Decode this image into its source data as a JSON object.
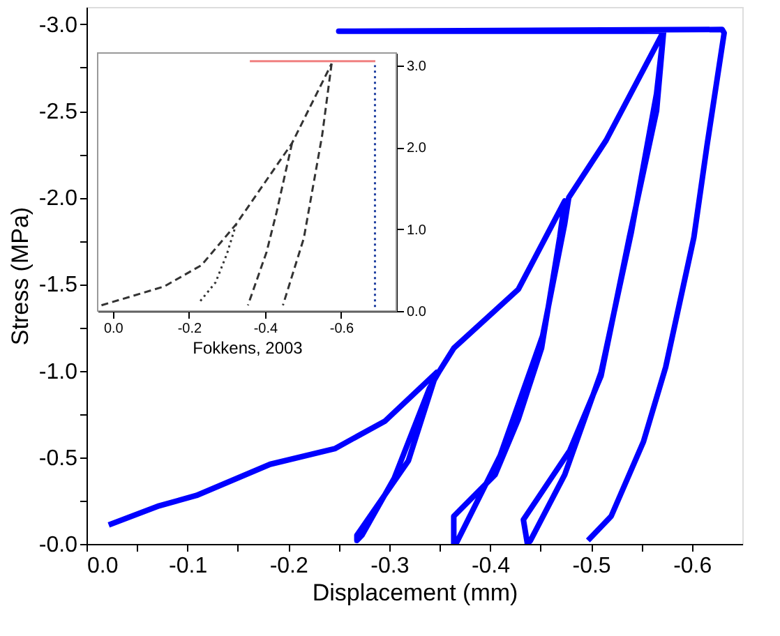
{
  "chart_data": [
    {
      "type": "line",
      "xlabel": "Displacement (mm)",
      "ylabel": "Stress (MPa)",
      "xlim": [
        0,
        -0.65
      ],
      "ylim": [
        0,
        -3.1
      ],
      "xticks": [
        {
          "value": 0,
          "label": "0.0"
        },
        -0.1,
        -0.2,
        -0.3,
        -0.4,
        -0.5,
        -0.6,
        {
          "value": -0.05,
          "label": null
        },
        {
          "value": -0.15,
          "label": null
        },
        {
          "value": -0.25,
          "label": null
        },
        {
          "value": -0.35,
          "label": null
        },
        {
          "value": -0.45,
          "label": null
        },
        {
          "value": -0.55,
          "label": null
        }
      ],
      "yticks": [
        {
          "value": 0,
          "label": "-0.0"
        },
        -0.5,
        {
          "value": -1,
          "label": "-1.0"
        },
        -1.5,
        {
          "value": -2,
          "label": "-2.0"
        },
        -2.5,
        {
          "value": -3,
          "label": "-3.0"
        },
        {
          "value": -0.25,
          "label": null
        },
        {
          "value": -0.75,
          "label": null
        },
        {
          "value": -1.25,
          "label": null
        },
        {
          "value": -1.75,
          "label": null
        },
        {
          "value": -2.25,
          "label": null
        },
        {
          "value": -2.75,
          "label": null
        }
      ],
      "series": [
        {
          "color": "#0000ff",
          "line_style": "solid",
          "x": [
            -0.022,
            -0.072,
            -0.109,
            -0.182,
            -0.246,
            -0.296,
            -0.347,
            -0.319,
            -0.268,
            -0.268,
            -0.273,
            -0.305,
            -0.34,
            -0.35,
            -0.364,
            -0.428,
            -0.474,
            -0.469,
            -0.451,
            -0.428,
            -0.405,
            -0.364,
            -0.364,
            -0.367,
            -0.41,
            -0.452,
            -0.474,
            -0.478,
            -0.515,
            -0.572,
            -0.565,
            -0.538,
            -0.51,
            -0.479,
            -0.433,
            -0.437,
            -0.44,
            -0.474,
            -0.51,
            -0.54,
            -0.565,
            -0.572,
            -0.25,
            -0.63,
            -0.632,
            -0.615,
            -0.602,
            -0.574,
            -0.552,
            -0.52,
            -0.497
          ],
          "values": [
            -0.11,
            -0.22,
            -0.28,
            -0.46,
            -0.55,
            -0.71,
            -0.99,
            -0.48,
            -0.05,
            -0.02,
            -0.05,
            -0.38,
            -0.9,
            -1.0,
            -1.13,
            -1.47,
            -1.98,
            -1.77,
            -1.13,
            -0.72,
            -0.4,
            -0.16,
            0,
            -0.01,
            -0.51,
            -1.2,
            -1.85,
            -2.0,
            -2.33,
            -2.96,
            -2.5,
            -1.77,
            -0.97,
            -0.54,
            -0.14,
            0,
            -0.02,
            -0.4,
            -0.99,
            -1.8,
            -2.6,
            -2.96,
            -2.96,
            -2.97,
            -2.95,
            -2.3,
            -1.77,
            -1.02,
            -0.59,
            -0.16,
            -0.02
          ]
        }
      ]
    },
    {
      "type": "line",
      "xlabel": "Fokkens, 2003",
      "xlim": [
        0.04,
        -0.745
      ],
      "ylim": [
        0,
        3.15
      ],
      "xticks": [
        {
          "value": 0,
          "label": "0.0"
        },
        -0.2,
        -0.4,
        -0.6
      ],
      "yticks": [
        {
          "value": 0,
          "label": "0.0"
        },
        {
          "value": 1,
          "label": "1.0"
        },
        {
          "value": 2,
          "label": "2.0"
        },
        {
          "value": 3,
          "label": "3.0"
        }
      ],
      "series": [
        {
          "color": "#333333",
          "line_style": "dashed",
          "x": [
            0.03,
            -0.135,
            -0.233,
            -0.324,
            -0.471,
            -0.575
          ],
          "values": [
            0.07,
            0.3,
            0.56,
            1.06,
            2.05,
            3.02
          ]
        },
        {
          "color": "#333333",
          "line_style": "dotted",
          "x": [
            -0.324,
            -0.3,
            -0.27,
            -0.226
          ],
          "values": [
            1.06,
            0.7,
            0.35,
            0.1
          ]
        },
        {
          "color": "#333333",
          "line_style": "dashed",
          "x": [
            -0.471,
            -0.43,
            -0.404,
            -0.355
          ],
          "values": [
            2.05,
            1.2,
            0.72,
            0.07
          ]
        },
        {
          "color": "#333333",
          "line_style": "dashed",
          "x": [
            -0.575,
            -0.55,
            -0.502,
            -0.447
          ],
          "values": [
            3.02,
            2.14,
            0.89,
            0.07
          ]
        },
        {
          "color": "#1f3fa0",
          "line_style": "dotted",
          "x": [
            -0.689,
            -0.689
          ],
          "values": [
            0.05,
            3.0
          ]
        },
        {
          "color": "#f08080",
          "line_style": "solid",
          "x": [
            -0.36,
            -0.69
          ],
          "values": [
            3.05,
            3.05
          ]
        }
      ]
    }
  ]
}
